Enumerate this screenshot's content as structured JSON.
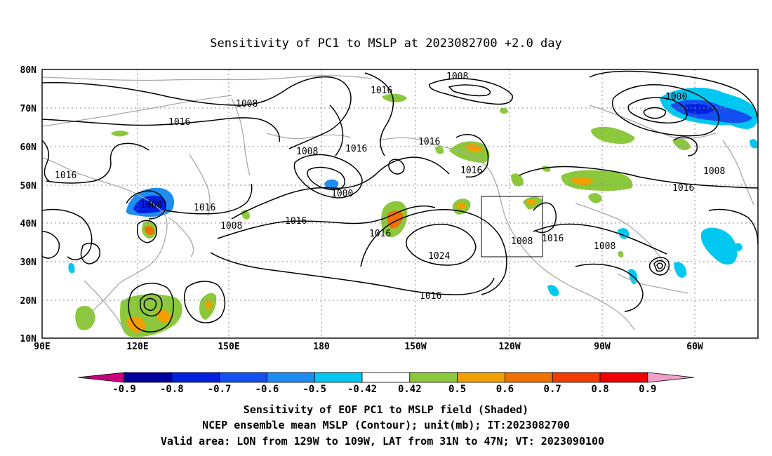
{
  "chart_data": {
    "type": "heatmap",
    "title": "Sensitivity of PC1 to MSLP at 2023082700 +2.0 day",
    "x_ticks": [
      "90E",
      "120E",
      "150E",
      "180",
      "150W",
      "120W",
      "90W",
      "60W"
    ],
    "y_ticks": [
      "80N",
      "70N",
      "60N",
      "50N",
      "40N",
      "30N",
      "20N",
      "10N"
    ],
    "xlim": [
      "90E",
      "50W"
    ],
    "ylim": [
      "10N",
      "80N"
    ],
    "grid": true,
    "colorbar": {
      "labels": [
        "-0.9",
        "-0.8",
        "-0.7",
        "-0.6",
        "-0.5",
        "-0.42",
        "0.42",
        "0.5",
        "0.6",
        "0.7",
        "0.8",
        "0.9"
      ],
      "colors": [
        "#c8007c",
        "#0000a0",
        "#0020e0",
        "#1450f0",
        "#1e8cf0",
        "#00c8f0",
        "#ffffff",
        "#8cc83c",
        "#f0a000",
        "#f07000",
        "#f03c00",
        "#f00000",
        "#f0a0c8"
      ]
    },
    "contour_labels": [
      "1008",
      "1016",
      "1008",
      "1016",
      "1000",
      "1008",
      "1016",
      "1008",
      "1000",
      "1016",
      "1016",
      "1016",
      "1016",
      "1008",
      "1016",
      "1024",
      "1008",
      "1016",
      "1008",
      "1016",
      "1016",
      "1008",
      "1016"
    ],
    "valid_box": {
      "lon_from": "129W",
      "lon_to": "109W",
      "lat_from": "31N",
      "lat_to": "47N"
    },
    "footer": [
      "Sensitivity of EOF PC1 to MSLP field (Shaded)",
      "NCEP ensemble mean MSLP (Contour); unit(mb); IT:2023082700",
      "Valid area: LON from 129W to 109W, LAT from 31N to 47N; VT: 2023090100"
    ]
  }
}
